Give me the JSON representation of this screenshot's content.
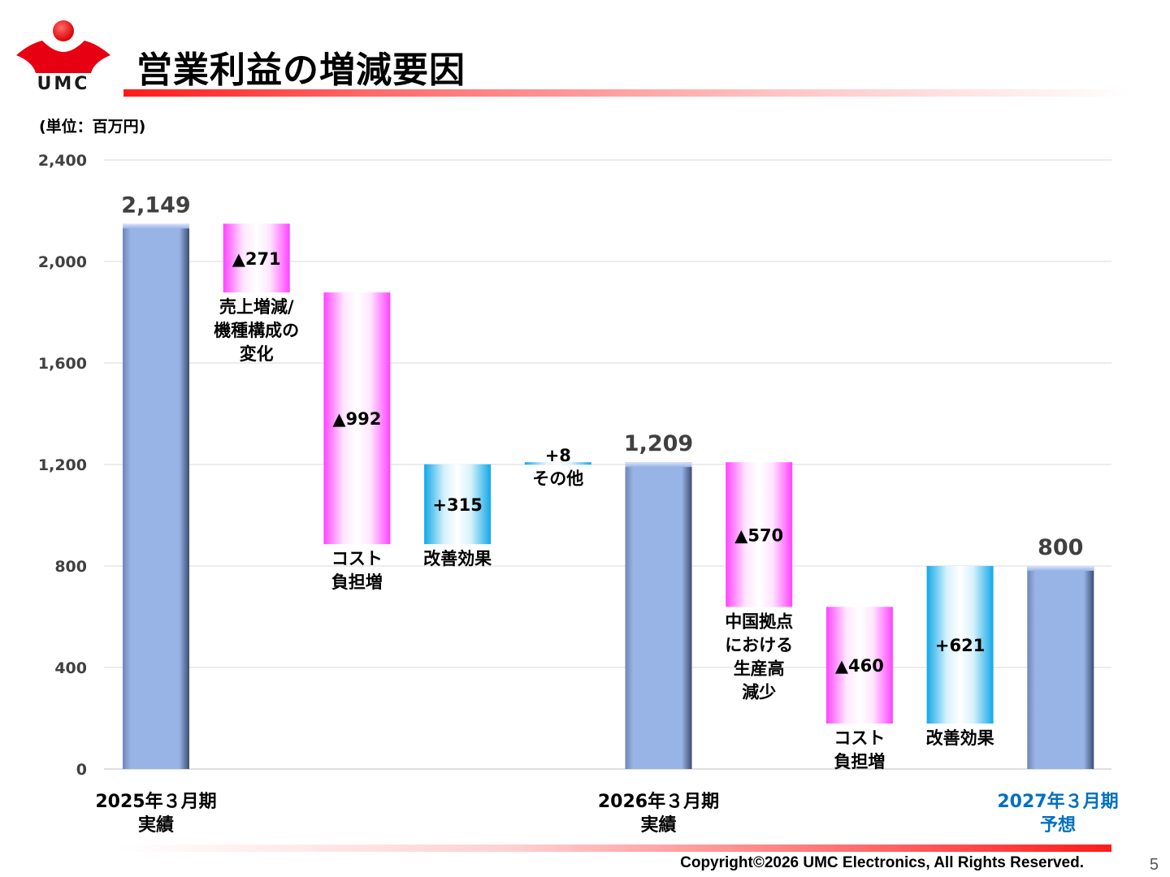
{
  "slide": {
    "title": "営業利益の増減要因",
    "unit": "(単位：百万円)",
    "logo_text": "UMC",
    "copyright": "Copyright©2026 UMC Electronics, All Rights Reserved.",
    "page_number": "5"
  },
  "colors": {
    "total_bar": "#98b3e6",
    "decrease_bar": "#ff66ff",
    "increase_bar": "#22b8f0",
    "forecast_label": "#0070c0",
    "accent_red": "#ff1a1a"
  },
  "chart_data": {
    "type": "waterfall",
    "ylim": [
      0,
      2400
    ],
    "yticks": [
      0,
      400,
      800,
      1200,
      1600,
      2000,
      2400
    ],
    "ytick_labels": [
      "0",
      "400",
      "800",
      "1,200",
      "1,600",
      "2,000",
      "2,400"
    ],
    "grid": true,
    "steps": [
      {
        "kind": "total",
        "value": 2149,
        "label": "2,149",
        "category": [
          "2025年３月期",
          "実績"
        ]
      },
      {
        "kind": "decrease",
        "value": -271,
        "label": "▲271",
        "description": [
          "売上増減/",
          "機種構成の",
          "変化"
        ]
      },
      {
        "kind": "decrease",
        "value": -992,
        "label": "▲992",
        "description": [
          "コスト",
          "負担増"
        ]
      },
      {
        "kind": "increase",
        "value": 315,
        "label": "+315",
        "description": [
          "改善効果"
        ]
      },
      {
        "kind": "increase",
        "value": 8,
        "label": "+8",
        "description": [
          "その他"
        ]
      },
      {
        "kind": "total",
        "value": 1209,
        "label": "1,209",
        "category": [
          "2026年３月期",
          "実績"
        ]
      },
      {
        "kind": "decrease",
        "value": -570,
        "label": "▲570",
        "description": [
          "中国拠点",
          "における",
          "生産高",
          "減少"
        ]
      },
      {
        "kind": "decrease",
        "value": -460,
        "label": "▲460",
        "description": [
          "コスト",
          "負担増"
        ]
      },
      {
        "kind": "increase",
        "value": 621,
        "label": "+621",
        "description": [
          "改善効果"
        ]
      },
      {
        "kind": "total",
        "value": 800,
        "label": "800",
        "category": [
          "2027年３月期",
          "予想"
        ],
        "forecast": true
      }
    ]
  }
}
